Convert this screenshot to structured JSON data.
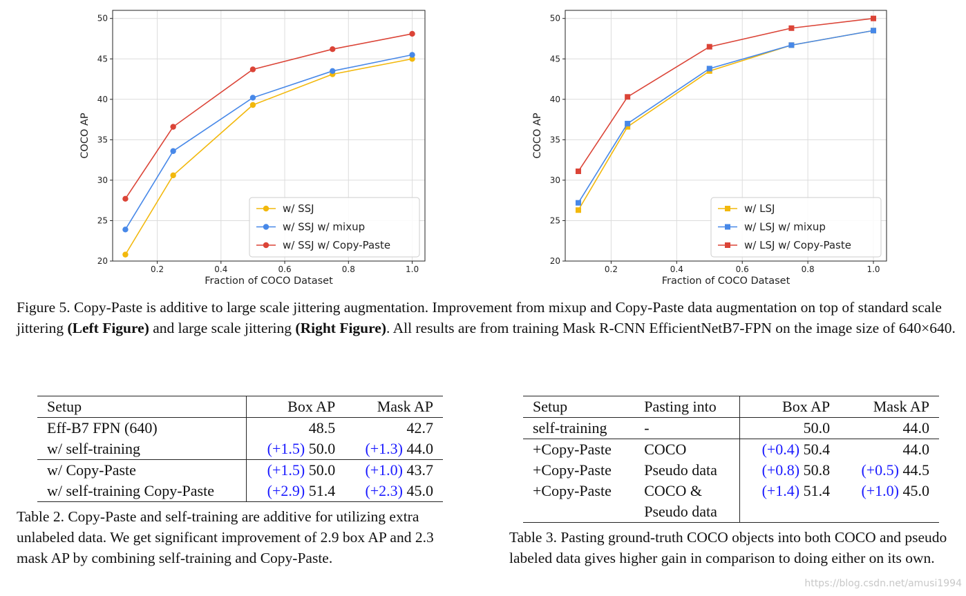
{
  "chart_data": [
    {
      "type": "line",
      "xlabel": "Fraction of COCO Dataset",
      "ylabel": "COCO AP",
      "xlim": [
        0.06,
        1.04
      ],
      "ylim": [
        20,
        51
      ],
      "xticks": [
        "0.2",
        "0.4",
        "0.6",
        "0.8",
        "1.0"
      ],
      "yticks": [
        "20",
        "25",
        "30",
        "35",
        "40",
        "45",
        "50"
      ],
      "grid": true,
      "legend": "bottom-right",
      "marker": "circle",
      "x": [
        0.1,
        0.25,
        0.5,
        0.75,
        1.0
      ],
      "series": [
        {
          "name": "w/ SSJ",
          "color": "#f2b80c",
          "values": [
            20.8,
            30.6,
            39.3,
            43.1,
            45.0
          ]
        },
        {
          "name": "w/ SSJ w/ mixup",
          "color": "#4788e8",
          "values": [
            23.9,
            33.6,
            40.2,
            43.5,
            45.5
          ]
        },
        {
          "name": "w/ SSJ w/ Copy-Paste",
          "color": "#db4437",
          "values": [
            27.7,
            36.6,
            43.7,
            46.2,
            48.1
          ]
        }
      ]
    },
    {
      "type": "line",
      "xlabel": "Fraction of COCO Dataset",
      "ylabel": "COCO AP",
      "xlim": [
        0.06,
        1.04
      ],
      "ylim": [
        20,
        51
      ],
      "xticks": [
        "0.2",
        "0.4",
        "0.6",
        "0.8",
        "1.0"
      ],
      "yticks": [
        "20",
        "25",
        "30",
        "35",
        "40",
        "45",
        "50"
      ],
      "grid": true,
      "legend": "bottom-right",
      "marker": "square",
      "x": [
        0.1,
        0.25,
        0.5,
        0.75,
        1.0
      ],
      "series": [
        {
          "name": "w/ LSJ",
          "color": "#f2b80c",
          "values": [
            26.3,
            36.6,
            43.5,
            46.7,
            48.5
          ]
        },
        {
          "name": "w/ LSJ w/ mixup",
          "color": "#4788e8",
          "values": [
            27.2,
            37.0,
            43.8,
            46.7,
            48.5
          ]
        },
        {
          "name": "w/ LSJ w/ Copy-Paste",
          "color": "#db4437",
          "values": [
            31.1,
            40.3,
            46.5,
            48.8,
            50.0
          ]
        }
      ]
    }
  ],
  "figure5": {
    "p1": "Figure 5. Copy-Paste is additive to large scale jittering augmentation. Improvement from mixup and Copy-Paste data augmentation on top of standard scale jittering ",
    "b1": "(Left Figure)",
    "p2": " and large scale jittering ",
    "b2": "(Right Figure)",
    "p3": ". All results are from training Mask R-CNN EfficientNetB7-FPN on the image size of 640×640."
  },
  "table2": {
    "headers": [
      "Setup",
      "Box AP",
      "Mask AP"
    ],
    "rows": [
      {
        "setup": "Eff-B7 FPN (640)",
        "box_delta": "",
        "box": "48.5",
        "mask_delta": "",
        "mask": "42.7"
      },
      {
        "setup": "w/ self-training",
        "box_delta": "(+1.5)",
        "box": "50.0",
        "mask_delta": "(+1.3)",
        "mask": "44.0"
      },
      {
        "setup": "w/ Copy-Paste",
        "box_delta": "(+1.5)",
        "box": "50.0",
        "mask_delta": "(+1.0)",
        "mask": "43.7"
      },
      {
        "setup": "w/ self-training Copy-Paste",
        "box_delta": "(+2.9)",
        "box": "51.4",
        "mask_delta": "(+2.3)",
        "mask": "45.0"
      }
    ],
    "caption": "Table 2. Copy-Paste and self-training are additive for utilizing extra unlabeled data. We get significant improvement of 2.9 box AP and 2.3 mask AP by combining self-training and Copy-Paste."
  },
  "table3": {
    "headers": [
      "Setup",
      "Pasting into",
      "Box AP",
      "Mask AP"
    ],
    "rows": [
      {
        "setup": "self-training",
        "into": "-",
        "into2": "",
        "box_delta": "",
        "box": "50.0",
        "mask_delta": "",
        "mask": "44.0"
      },
      {
        "setup": "+Copy-Paste",
        "into": "COCO",
        "into2": "",
        "box_delta": "(+0.4)",
        "box": "50.4",
        "mask_delta": "",
        "mask": "44.0"
      },
      {
        "setup": "+Copy-Paste",
        "into": "Pseudo data",
        "into2": "",
        "box_delta": "(+0.8)",
        "box": "50.8",
        "mask_delta": "(+0.5)",
        "mask": "44.5"
      },
      {
        "setup": "+Copy-Paste",
        "into": "COCO &",
        "into2": "Pseudo data",
        "box_delta": "(+1.4)",
        "box": "51.4",
        "mask_delta": "(+1.0)",
        "mask": "45.0"
      }
    ],
    "caption": "Table 3. Pasting ground-truth COCO objects into both COCO and pseudo labeled data gives higher gain in comparison to doing either on its own."
  },
  "watermark": "https://blog.csdn.net/amusi1994"
}
